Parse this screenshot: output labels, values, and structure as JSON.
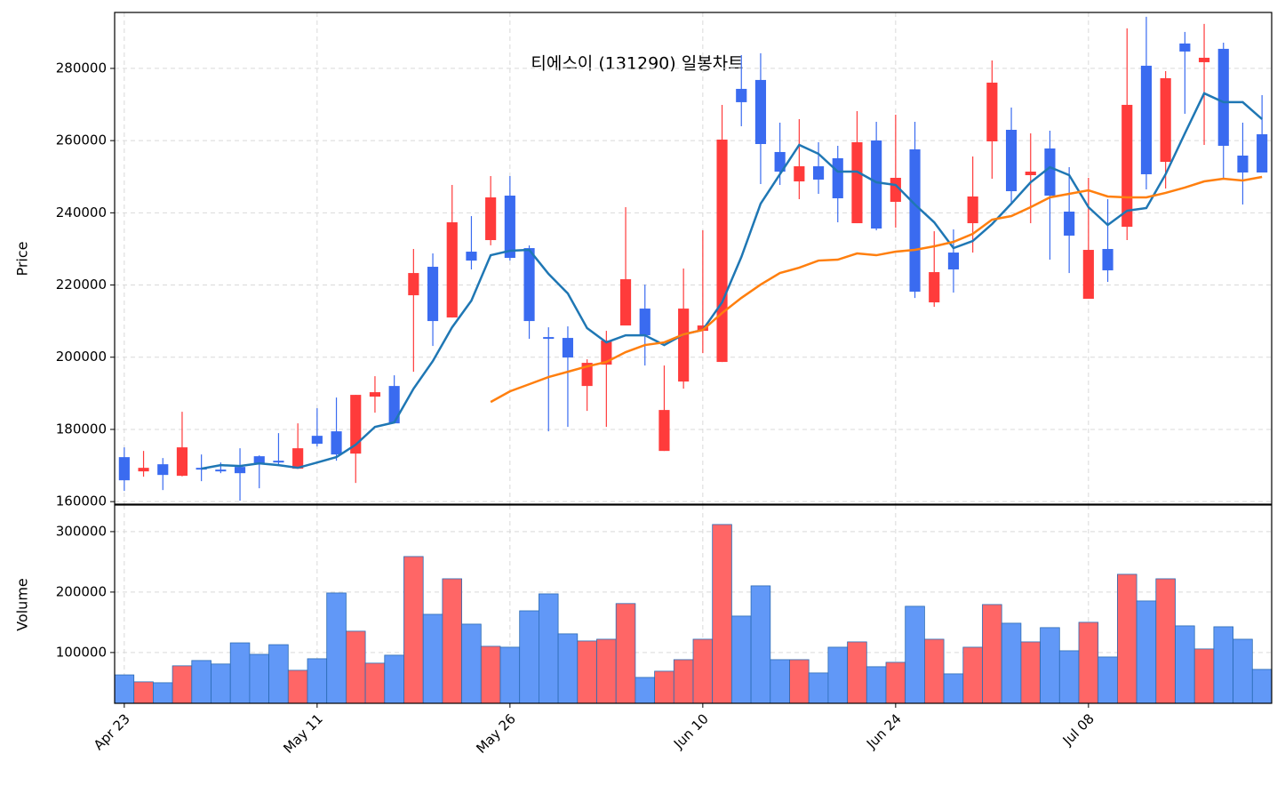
{
  "chart_data": [
    {
      "type": "candlestick",
      "title": "티에스이 (131290) 일봉차트",
      "ylabel": "Price",
      "up_color": "#ff3b3b",
      "down_color": "#3a6bf0",
      "ylim": [
        159300,
        295500
      ],
      "yticks": [
        160000,
        180000,
        200000,
        220000,
        240000,
        260000,
        280000
      ],
      "grid": true,
      "open": [
        172320,
        168380,
        170350,
        167150,
        169360,
        168870,
        169610,
        172570,
        171330,
        169120,
        178230,
        179470,
        173300,
        189080,
        192030,
        217160,
        225050,
        211000,
        229240,
        232440,
        244760,
        230220,
        205580,
        205340,
        192030,
        197950,
        208790,
        213470,
        174040,
        193260,
        207310,
        198690,
        274330,
        276800,
        256840,
        248700,
        252890,
        255110,
        237120,
        260040,
        243040,
        257570,
        215190,
        228990,
        237120,
        259790,
        262990,
        250430,
        257820,
        240330,
        216180,
        229980,
        236140,
        280740,
        254120,
        286900,
        281720,
        285420,
        255850,
        261760
      ],
      "high": [
        175030,
        174040,
        172070,
        184890,
        173060,
        170840,
        174780,
        172810,
        178970,
        181680,
        185870,
        188830,
        189570,
        194740,
        194990,
        229980,
        228750,
        247720,
        239090,
        250180,
        250180,
        230960,
        208290,
        208540,
        199420,
        207310,
        241560,
        220120,
        197700,
        224560,
        235150,
        269900,
        283690,
        284190,
        264970,
        265950,
        259550,
        258560,
        268170,
        265210,
        267180,
        265210,
        234900,
        235400,
        255600,
        282210,
        269160,
        262010,
        262750,
        252640,
        249690,
        243780,
        291090,
        294290,
        279260,
        290100,
        292320,
        287140,
        264970,
        272600
      ],
      "low": [
        162960,
        166900,
        163200,
        167000,
        165670,
        167880,
        160250,
        163700,
        170100,
        169120,
        175280,
        171330,
        165170,
        184640,
        181680,
        195970,
        203120,
        211000,
        224310,
        231000,
        226770,
        205090,
        179470,
        180700,
        185130,
        180700,
        208790,
        197700,
        174040,
        191290,
        201150,
        198690,
        263980,
        247960,
        247720,
        243780,
        245250,
        237370,
        237120,
        235150,
        235890,
        216420,
        213960,
        217900,
        228990,
        249440,
        242300,
        237120,
        227020,
        223320,
        216180,
        220860,
        232440,
        246490,
        246740,
        267430,
        258810,
        249690,
        242300,
        251170
      ],
      "close": [
        165910,
        169360,
        167390,
        175030,
        169120,
        168620,
        167880,
        170600,
        171090,
        174780,
        176020,
        173060,
        189570,
        190310,
        181680,
        223320,
        210020,
        237370,
        226770,
        244270,
        227510,
        210020,
        205090,
        199920,
        198440,
        204600,
        221600,
        206080,
        185380,
        213470,
        208790,
        260280,
        270640,
        259050,
        251410,
        252890,
        249200,
        244020,
        259550,
        235650,
        249690,
        218150,
        223570,
        224310,
        244520,
        276060,
        245990,
        251410,
        244760,
        233680,
        229730,
        224060,
        269900,
        250680,
        277290,
        284680,
        282950,
        258560,
        251170,
        251170
      ],
      "series": [
        {
          "color": "#1f77b4",
          "values": [
            null,
            null,
            null,
            null,
            169120,
            170100,
            169860,
            170600,
            170100,
            169360,
            170840,
            172320,
            175770,
            180700,
            181930,
            191290,
            198930,
            208290,
            215680,
            228250,
            229480,
            229730,
            223080,
            217660,
            208050,
            204110,
            206080,
            206080,
            203370,
            206320,
            207560,
            215190,
            227760,
            242540,
            250680,
            258810,
            256340,
            251410,
            251410,
            248460,
            247720,
            242300,
            237370,
            230220,
            232200,
            236880,
            242540,
            248460,
            252640,
            250430,
            241560,
            236630,
            240570,
            241310,
            250680,
            262010,
            273100,
            270640,
            270640,
            265950
          ]
        },
        {
          "color": "#ff7f0e",
          "values": [
            null,
            null,
            null,
            null,
            null,
            null,
            null,
            null,
            null,
            null,
            null,
            null,
            null,
            null,
            null,
            null,
            null,
            null,
            null,
            187600,
            190550,
            192520,
            194500,
            195970,
            197450,
            198680,
            201400,
            203370,
            204110,
            206320,
            207560,
            212240,
            216430,
            220120,
            223320,
            224800,
            226770,
            227020,
            228750,
            228250,
            229240,
            229730,
            230720,
            231950,
            234170,
            238110,
            239090,
            241560,
            244270,
            245250,
            246240,
            244520,
            244270,
            244270,
            245520,
            246990,
            248700,
            249440,
            248950,
            249940
          ]
        }
      ]
    },
    {
      "type": "bar",
      "ylabel": "Volume",
      "up_color": "#ff6666",
      "down_color": "#6198f7",
      "edge_color": "#2a6bb5",
      "ylim": [
        16000,
        344000
      ],
      "yticks": [
        100000,
        200000,
        300000
      ],
      "grid": true,
      "xlim": [
        -0.5,
        59.5
      ],
      "xticks": [
        {
          "value": 0,
          "label": "Apr 23"
        },
        {
          "value": 10,
          "label": "May 11"
        },
        {
          "value": 20,
          "label": "May 26"
        },
        {
          "value": 30,
          "label": "Jun 10"
        },
        {
          "value": 40,
          "label": "Jun 24"
        },
        {
          "value": 50,
          "label": "Jul 08"
        }
      ],
      "values": [
        63000,
        51500,
        50000,
        78000,
        86800,
        81000,
        116000,
        97000,
        113000,
        70600,
        89700,
        198500,
        135300,
        82400,
        95600,
        258800,
        163200,
        222000,
        147000,
        110300,
        108800,
        169000,
        197000,
        130900,
        119100,
        122000,
        181000,
        58800,
        69100,
        88200,
        122000,
        311800,
        160300,
        210300,
        88200,
        88200,
        66200,
        108800,
        117600,
        76500,
        83800,
        176500,
        122000,
        64700,
        108800,
        179400,
        148500,
        117600,
        141200,
        102900,
        150000,
        92600,
        229400,
        185300,
        222000,
        144100,
        105900,
        142600,
        122000,
        72100
      ]
    }
  ]
}
